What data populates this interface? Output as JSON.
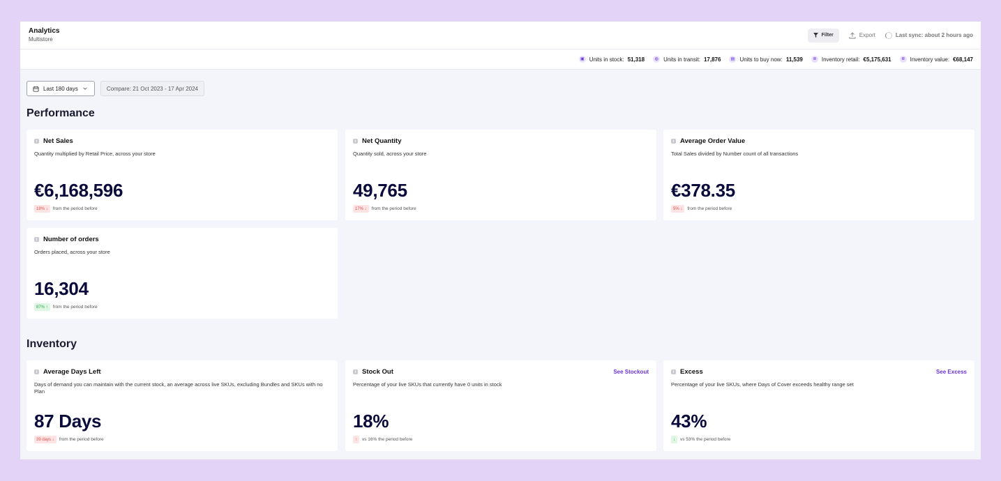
{
  "header": {
    "title": "Analytics",
    "subtitle": "Multistore",
    "filter_label": "Filter",
    "export_label": "Export",
    "sync_label": "Last sync: about 2 hours ago"
  },
  "metrics": [
    {
      "label": "Units in stock:",
      "value": "51,318",
      "icon": "box-icon",
      "glyph": "▣"
    },
    {
      "label": "Units in transit:",
      "value": "17,876",
      "icon": "globe-icon",
      "glyph": "◍"
    },
    {
      "label": "Units to buy now:",
      "value": "11,539",
      "icon": "cart-icon",
      "glyph": "▤"
    },
    {
      "label": "Inventory retail:",
      "value": "€5,175,631",
      "icon": "coins-icon",
      "glyph": "≣"
    },
    {
      "label": "Inventory value:",
      "value": "€68,147",
      "icon": "coins-icon",
      "glyph": "≣"
    }
  ],
  "controls": {
    "date_range": "Last 180 days",
    "compare": "Compare: 21 Oct 2023 - 17 Apr 2024"
  },
  "performance": {
    "title": "Performance",
    "cards": [
      {
        "title": "Net Sales",
        "desc": "Quantity multiplied by Retail Price, across your store",
        "value": "€6,168,596",
        "badge": "18% ↓",
        "badge_color": "red",
        "foot": "from the period before"
      },
      {
        "title": "Net Quantity",
        "desc": "Quantity sold, across your store",
        "value": "49,765",
        "badge": "17% ↓",
        "badge_color": "red",
        "foot": "from the period before"
      },
      {
        "title": "Average Order Value",
        "desc": "Total Sales divided by Number count of all transactions",
        "value": "€378.35",
        "badge": "5% ↓",
        "badge_color": "red",
        "foot": "from the period before"
      },
      {
        "title": "Number of orders",
        "desc": "Orders placed, across your store",
        "value": "16,304",
        "badge": "87% ↑",
        "badge_color": "green",
        "foot": "from the period before"
      }
    ]
  },
  "inventory": {
    "title": "Inventory",
    "cards": [
      {
        "title": "Average Days Left",
        "desc": "Days of demand you can maintain with the current stock, an average across live SKUs, excluding Bundles and SKUs with no Plan",
        "value": "87 Days",
        "badge": "39 days ↓",
        "badge_color": "red",
        "foot": "from the period before",
        "link": ""
      },
      {
        "title": "Stock Out",
        "desc": "Percentage of your live SKUs that currently have 0 units in stock",
        "value": "18%",
        "badge": "↑",
        "badge_color": "red",
        "foot": "vs 16% the period before",
        "link": "See Stockout"
      },
      {
        "title": "Excess",
        "desc": "Percentage of your live SKUs, where Days of Cover exceeds healthy range set",
        "value": "43%",
        "badge": "↓",
        "badge_color": "green",
        "foot": "vs 53% the period before",
        "link": "See Excess"
      }
    ]
  }
}
